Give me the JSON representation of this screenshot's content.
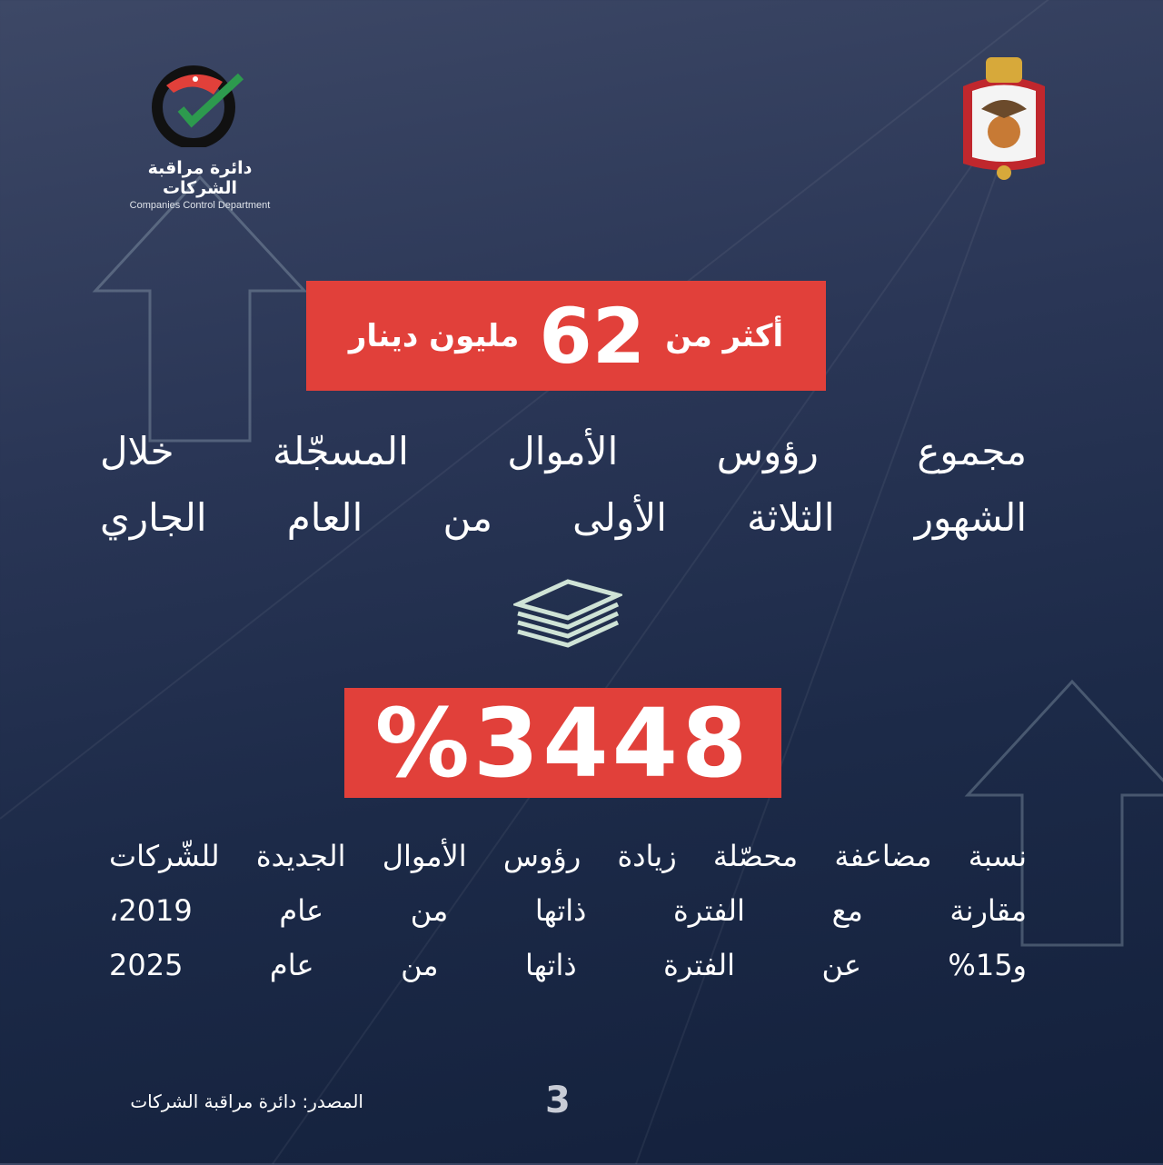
{
  "logo": {
    "name_ar": "دائرة مراقبة الشركات",
    "name_en": "Companies Control Department"
  },
  "headline": {
    "prefix": "أكثر من",
    "number": "62",
    "suffix": "مليون دينار"
  },
  "subtitle": [
    "مجموع رؤوس الأموال المسجّلة خلال",
    "الشهور الثلاثة الأولى من العام الجاري"
  ],
  "percentage": "%3448",
  "description": [
    "نسبة مضاعفة محصّلة زيادة رؤوس الأموال الجديدة للشّركات",
    "مقارنة مع الفترة ذاتها من عام 2019،",
    "و15% عن الفترة ذاتها من عام 2025"
  ],
  "footer": {
    "source": "المصدر: دائرة مراقبة الشركات",
    "page": "3"
  },
  "colors": {
    "accent": "#e1403a",
    "background": "#1c2a48",
    "money_icon": "#cfe3d6"
  },
  "icons": [
    "money-stack-icon",
    "arrow-up-icon",
    "coat-of-arms-icon"
  ]
}
